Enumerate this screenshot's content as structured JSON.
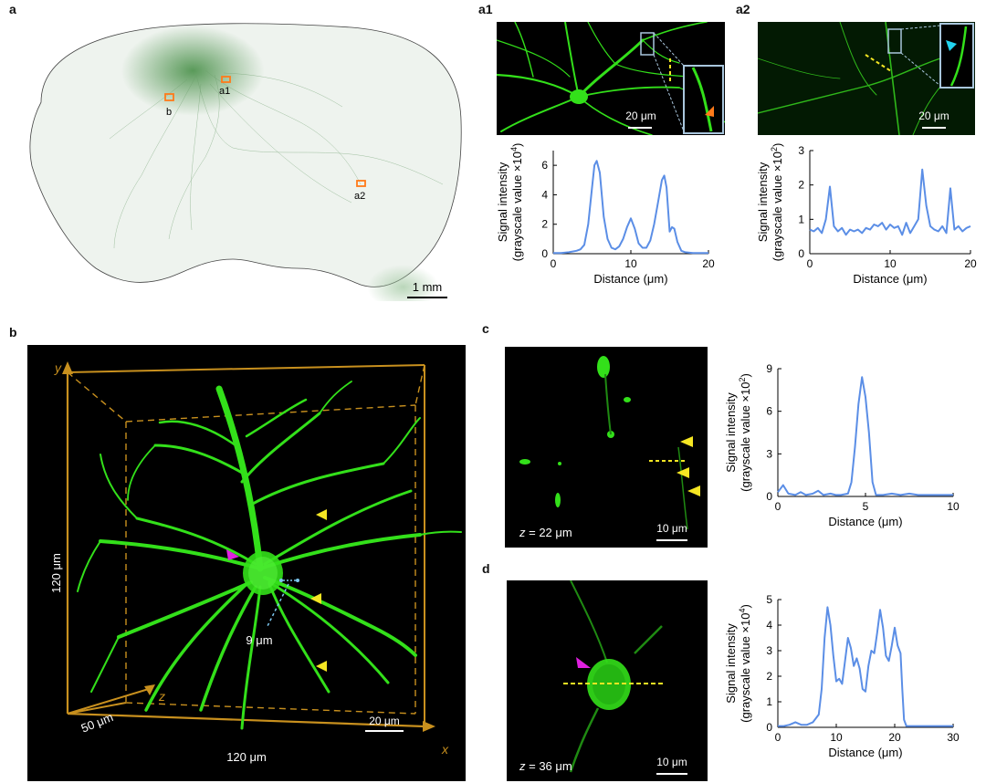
{
  "panels": {
    "a": {
      "label": "a",
      "roi_labels": [
        "a1",
        "b",
        "a2"
      ],
      "scalebar": "1 mm"
    },
    "a1": {
      "label": "a1",
      "scalebar": "20 μm"
    },
    "a2": {
      "label": "a2",
      "scalebar": "20 μm"
    },
    "b": {
      "label": "b",
      "axis_y": "y",
      "axis_z": "z",
      "axis_x": "x",
      "dim_y": "120 μm",
      "dim_z": "50 μm",
      "dim_x": "120 μm",
      "soma_size": "9 μm",
      "scalebar": "20 μm"
    },
    "c": {
      "label": "c",
      "z_prefix": "z",
      "z_value": " = 22 μm",
      "scalebar": "10 μm"
    },
    "d": {
      "label": "d",
      "z_prefix": "z",
      "z_value": " = 36 μm",
      "scalebar": "10 μm"
    }
  },
  "colors": {
    "line": "#5b8ee6",
    "fluor": "#33e01a",
    "roi": "#ff7a1a",
    "box": "#c8901e",
    "dash": "#f5e623"
  },
  "chart_data": [
    {
      "type": "line",
      "panel": "a1",
      "xlabel": "Distance (μm)",
      "ylabel_line1": "Signal intensity",
      "ylabel_line2": "(grayscale value ×10",
      "ylabel_exp": "4",
      "ylabel_close": ")",
      "xlim": [
        0,
        20
      ],
      "ylim": [
        0,
        7
      ],
      "xticks": [
        0,
        10,
        20
      ],
      "yticks": [
        0,
        2,
        4,
        6
      ],
      "x": [
        0,
        1,
        2,
        3,
        3.5,
        4,
        4.5,
        5,
        5.3,
        5.6,
        6,
        6.5,
        7,
        7.5,
        8,
        8.5,
        9,
        9.5,
        10,
        10.5,
        11,
        11.5,
        12,
        12.5,
        13,
        13.5,
        14,
        14.3,
        14.6,
        15,
        15.3,
        15.6,
        16,
        16.5,
        17,
        18,
        19,
        20
      ],
      "y": [
        0.05,
        0.05,
        0.1,
        0.2,
        0.3,
        0.6,
        2.0,
        4.5,
        6.0,
        6.3,
        5.5,
        2.5,
        1.0,
        0.4,
        0.3,
        0.5,
        1.0,
        1.8,
        2.4,
        1.7,
        0.7,
        0.4,
        0.4,
        0.9,
        2.0,
        3.5,
        5.0,
        5.3,
        4.5,
        1.5,
        1.8,
        1.7,
        0.8,
        0.2,
        0.1,
        0.05,
        0.05,
        0.05
      ]
    },
    {
      "type": "line",
      "panel": "a2",
      "xlabel": "Distance (μm)",
      "ylabel_line1": "Signal intensity",
      "ylabel_line2": "(grayscale value ×10",
      "ylabel_exp": "2",
      "ylabel_close": ")",
      "xlim": [
        0,
        20
      ],
      "ylim": [
        0,
        3
      ],
      "xticks": [
        0,
        10,
        20
      ],
      "yticks": [
        0,
        1,
        2,
        3
      ],
      "x": [
        0,
        0.5,
        1,
        1.5,
        2,
        2.5,
        3,
        3.5,
        4,
        4.5,
        5,
        5.5,
        6,
        6.5,
        7,
        7.5,
        8,
        8.5,
        9,
        9.5,
        10,
        10.5,
        11,
        11.5,
        12,
        12.5,
        13,
        13.5,
        14,
        14.5,
        15,
        15.5,
        16,
        16.5,
        17,
        17.5,
        18,
        18.5,
        19,
        19.5,
        20
      ],
      "y": [
        0.7,
        0.65,
        0.75,
        0.6,
        1.0,
        1.95,
        0.8,
        0.65,
        0.75,
        0.55,
        0.7,
        0.65,
        0.7,
        0.6,
        0.75,
        0.7,
        0.85,
        0.8,
        0.9,
        0.7,
        0.85,
        0.75,
        0.8,
        0.55,
        0.9,
        0.6,
        0.8,
        1.0,
        2.45,
        1.4,
        0.8,
        0.7,
        0.65,
        0.8,
        0.6,
        1.9,
        0.7,
        0.8,
        0.65,
        0.75,
        0.8
      ]
    },
    {
      "type": "line",
      "panel": "c",
      "xlabel": "Distance (μm)",
      "ylabel_line1": "Signal intensity",
      "ylabel_line2": "(grayscale value ×10",
      "ylabel_exp": "2",
      "ylabel_close": ")",
      "xlim": [
        0,
        10
      ],
      "ylim": [
        0,
        9
      ],
      "xticks": [
        0,
        5,
        10
      ],
      "yticks": [
        0,
        3,
        6,
        9
      ],
      "x": [
        0,
        0.3,
        0.6,
        1,
        1.3,
        1.6,
        2,
        2.3,
        2.6,
        3,
        3.3,
        3.6,
        4,
        4.2,
        4.4,
        4.6,
        4.8,
        5,
        5.2,
        5.4,
        5.6,
        6,
        6.5,
        7,
        7.5,
        8,
        8.5,
        9,
        9.5,
        10
      ],
      "y": [
        0.3,
        0.8,
        0.2,
        0.1,
        0.3,
        0.1,
        0.2,
        0.4,
        0.1,
        0.2,
        0.1,
        0.1,
        0.2,
        1.0,
        3.5,
        6.5,
        8.4,
        7.0,
        4.5,
        1.0,
        0.1,
        0.1,
        0.2,
        0.1,
        0.2,
        0.1,
        0.1,
        0.1,
        0.1,
        0.1
      ]
    },
    {
      "type": "line",
      "panel": "d",
      "xlabel": "Distance (μm)",
      "ylabel_line1": "Signal intensity",
      "ylabel_line2": "(grayscale value ×10",
      "ylabel_exp": "4",
      "ylabel_close": ")",
      "xlim": [
        0,
        30
      ],
      "ylim": [
        0,
        5
      ],
      "xticks": [
        0,
        10,
        20,
        30
      ],
      "yticks": [
        0,
        1,
        2,
        3,
        4,
        5
      ],
      "x": [
        0,
        1,
        2,
        3,
        4,
        5,
        6,
        7,
        7.5,
        8,
        8.5,
        9,
        9.5,
        10,
        10.5,
        11,
        11.5,
        12,
        12.5,
        13,
        13.5,
        14,
        14.5,
        15,
        15.5,
        16,
        16.5,
        17,
        17.5,
        18,
        18.5,
        19,
        19.5,
        20,
        20.5,
        21,
        21.3,
        21.6,
        22,
        23,
        25,
        27,
        30
      ],
      "y": [
        0.05,
        0.05,
        0.1,
        0.2,
        0.1,
        0.1,
        0.2,
        0.5,
        1.5,
        3.5,
        4.7,
        4.0,
        2.8,
        1.8,
        1.9,
        1.7,
        2.6,
        3.5,
        3.1,
        2.4,
        2.7,
        2.3,
        1.5,
        1.4,
        2.4,
        3.0,
        2.9,
        3.7,
        4.6,
        3.9,
        2.8,
        2.6,
        3.2,
        3.9,
        3.2,
        2.9,
        1.5,
        0.3,
        0.05,
        0.05,
        0.05,
        0.05,
        0.05
      ]
    }
  ]
}
